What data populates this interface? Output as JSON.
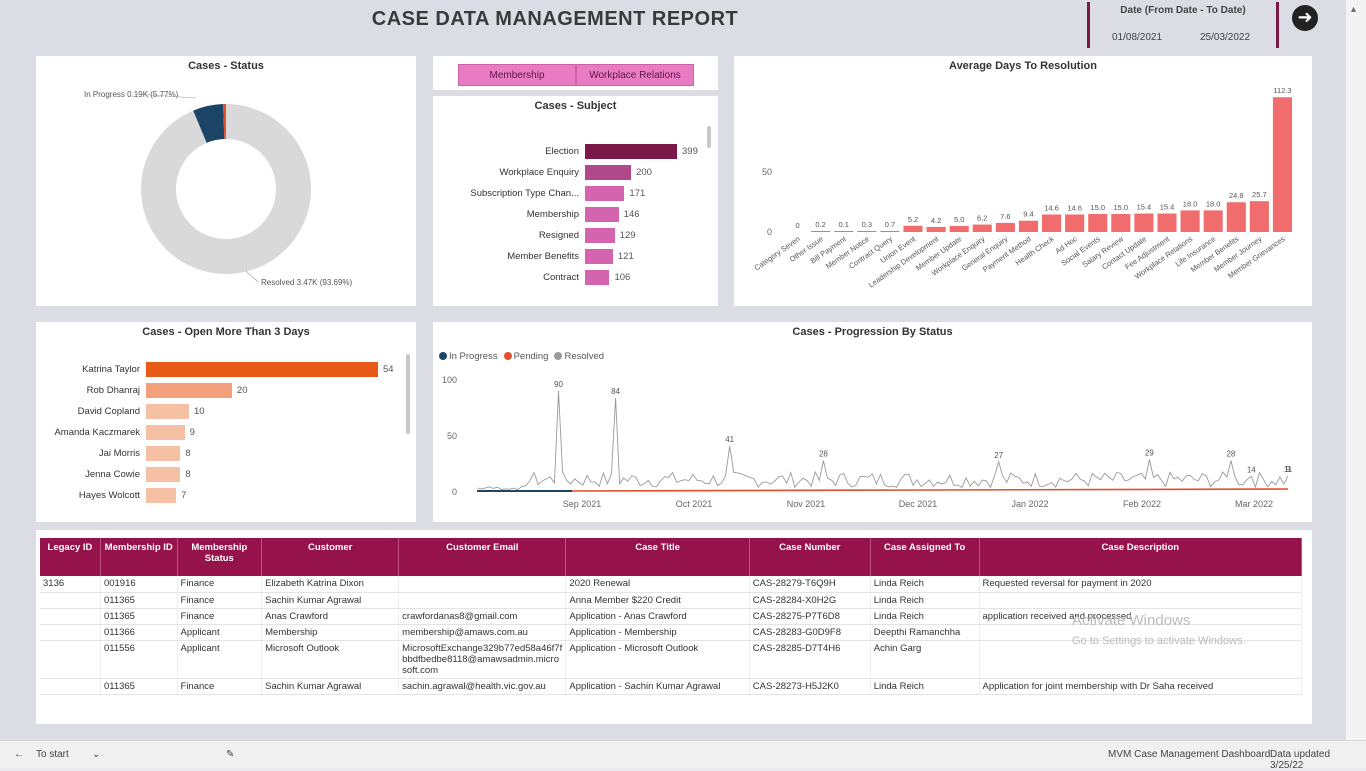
{
  "header": {
    "title": "CASE DATA MANAGEMENT REPORT",
    "date_slicer": {
      "label": "Date (From Date - To Date)",
      "from": "01/08/2021",
      "to": "25/03/2022"
    }
  },
  "status_donut": {
    "title": "Cases - Status",
    "callout_in_progress": "In Progress 0.19K (5.77%)",
    "callout_resolved": "Resolved 3.47K (93.69%)",
    "slices": [
      {
        "name": "Resolved",
        "fraction": 0.9369,
        "color": "#d9d9d9"
      },
      {
        "name": "In Progress",
        "fraction": 0.0577,
        "color": "#1b4466"
      },
      {
        "name": "Pending",
        "fraction": 0.0054,
        "color": "#e0502a"
      }
    ]
  },
  "toggle_buttons": {
    "left": "Membership",
    "right": "Workplace Relations"
  },
  "subject_chart": {
    "title": "Cases - Subject",
    "items": [
      {
        "label": "Election",
        "value": 399,
        "color": "#7a1848"
      },
      {
        "label": "Workplace Enquiry",
        "value": 200,
        "color": "#b0488a"
      },
      {
        "label": "Subscription Type Chan...",
        "value": 171,
        "color": "#d464ad"
      },
      {
        "label": "Membership",
        "value": 146,
        "color": "#d464ad"
      },
      {
        "label": "Resigned",
        "value": 129,
        "color": "#d464ad"
      },
      {
        "label": "Member Benefits",
        "value": 121,
        "color": "#d464ad"
      },
      {
        "label": "Contract",
        "value": 106,
        "color": "#d464ad"
      }
    ],
    "max": 399
  },
  "avg_days_chart": {
    "title": "Average Days To Resolution",
    "y_ticks": [
      "50",
      "0"
    ],
    "y_max": 115,
    "color": "#f16d6d",
    "bars": [
      {
        "cat": "Category Seven",
        "value": 0.0,
        "label": "0"
      },
      {
        "cat": "Other Issue",
        "value": 0.2,
        "label": "0.2"
      },
      {
        "cat": "Bill Payment",
        "value": 0.1,
        "label": "0.1"
      },
      {
        "cat": "Member Notice",
        "value": 0.3,
        "label": "0.3"
      },
      {
        "cat": "Contract Query",
        "value": 0.7,
        "label": "0.7"
      },
      {
        "cat": "Union Event",
        "value": 5.2,
        "label": "5.2"
      },
      {
        "cat": "Leadership Development",
        "value": 4.2,
        "label": "4.2"
      },
      {
        "cat": "Member Update",
        "value": 5.0,
        "label": "5.0"
      },
      {
        "cat": "Workplace Enquiry",
        "value": 6.2,
        "label": "6.2"
      },
      {
        "cat": "General Enquiry",
        "value": 7.6,
        "label": "7.6"
      },
      {
        "cat": "Payment Method",
        "value": 9.4,
        "label": "9.4"
      },
      {
        "cat": "Health Check",
        "value": 14.6,
        "label": "14.6"
      },
      {
        "cat": "Ad Hoc",
        "value": 14.6,
        "label": "14.6"
      },
      {
        "cat": "Social Events",
        "value": 15.0,
        "label": "15.0"
      },
      {
        "cat": "Salary Review",
        "value": 15.0,
        "label": "15.0"
      },
      {
        "cat": "Contact Update",
        "value": 15.4,
        "label": "15.4"
      },
      {
        "cat": "Fee Adjustment",
        "value": 15.4,
        "label": "15.4"
      },
      {
        "cat": "Workplace Relations",
        "value": 18.0,
        "label": "18.0"
      },
      {
        "cat": "Life Insurance",
        "value": 18.0,
        "label": "18.0"
      },
      {
        "cat": "Member Benefits",
        "value": 24.8,
        "label": "24.8"
      },
      {
        "cat": "Member Journey",
        "value": 25.7,
        "label": "25.7"
      },
      {
        "cat": "Member Grievances",
        "value": 112.3,
        "label": "112.3"
      }
    ]
  },
  "open_more_chart": {
    "title": "Cases - Open More Than 3 Days",
    "items": [
      {
        "label": "Katrina Taylor",
        "value": 54,
        "color": "#e85a17"
      },
      {
        "label": "Rob Dhanraj",
        "value": 20,
        "color": "#f2a07c"
      },
      {
        "label": "David Copland",
        "value": 10,
        "color": "#f6c0a4"
      },
      {
        "label": "Amanda Kaczmarek",
        "value": 9,
        "color": "#f6c0a4"
      },
      {
        "label": "Jai Morris",
        "value": 8,
        "color": "#f6c0a4"
      },
      {
        "label": "Jenna Cowie",
        "value": 8,
        "color": "#f6c0a4"
      },
      {
        "label": "Hayes Wolcott",
        "value": 7,
        "color": "#f6c0a4"
      }
    ],
    "max": 54
  },
  "progression_chart": {
    "title": "Cases - Progression By Status",
    "legend": [
      {
        "name": "In Progress",
        "color": "#1b4466"
      },
      {
        "name": "Pending",
        "color": "#e0502a"
      },
      {
        "name": "Resolved",
        "color": "#9a9a9a"
      }
    ],
    "y_ticks": [
      "100",
      "50",
      "0"
    ],
    "x_ticks": [
      "Sep 2021",
      "Oct 2021",
      "Nov 2021",
      "Dec 2021",
      "Jan 2022",
      "Feb 2022",
      "Mar 2022"
    ],
    "peak_labels": [
      "90",
      "84",
      "41",
      "28",
      "27",
      "29",
      "28",
      "14",
      "11",
      "9"
    ]
  },
  "case_table": {
    "columns": [
      "Legacy ID",
      "Membership ID",
      "Membership Status",
      "Customer",
      "Customer Email",
      "Case Title",
      "Case Number",
      "Case Assigned To",
      "Case Description"
    ],
    "rows": [
      [
        "3136",
        "001916",
        "Finance",
        "Elizabeth Katrina Dixon",
        "",
        "2020 Renewal",
        "CAS-28279-T6Q9H",
        "Linda Reich",
        "Requested reversal for payment in 2020"
      ],
      [
        "",
        "011365",
        "Finance",
        "Sachin Kumar Agrawal",
        "",
        "Anna Member $220 Credit",
        "CAS-28284-X0H2G",
        "Linda Reich",
        ""
      ],
      [
        "",
        "011365",
        "Finance",
        "Anas Crawford",
        "crawfordanas8@gmail.com",
        "Application - Anas Crawford",
        "CAS-28275-P7T6D8",
        "Linda Reich",
        "application received and processed"
      ],
      [
        "",
        "011366",
        "Applicant",
        "Membership",
        "membership@amaws.com.au",
        "Application - Membership",
        "CAS-28283-G0D9F8",
        "Deepthi Ramanchha",
        ""
      ],
      [
        "",
        "011556",
        "Applicant",
        "Microsoft Outlook",
        "MicrosoftExchange329b77ed58a46f7fbbdfbedbe8118@amawsadmin.microsoft.com",
        "Application - Microsoft Outlook",
        "CAS-28285-D7T4H6",
        "Achin Garg",
        ""
      ],
      [
        "",
        "011365",
        "Finance",
        "Sachin Kumar Agrawal",
        "sachin.agrawal@health.vic.gov.au",
        "Application - Sachin Kumar Agrawal",
        "CAS-28273-H5J2K0",
        "Linda Reich",
        "Application for joint membership with Dr Saha received"
      ]
    ]
  },
  "watermark": {
    "line1": "Activate Windows",
    "line2": "Go to Settings to activate Windows."
  },
  "status_bar": {
    "left": "To start",
    "right_file": "MVM Case Management Dashboard",
    "right_updated": "Data updated 3/25/22"
  }
}
